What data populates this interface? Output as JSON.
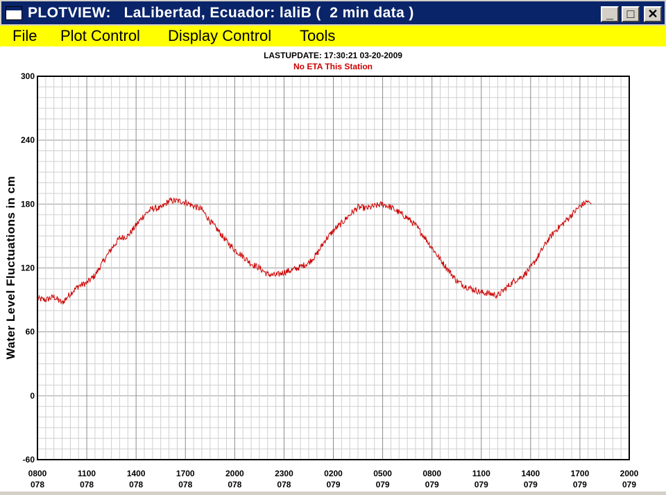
{
  "window": {
    "title": "PLOTVIEW:   LaLibertad, Ecuador: laliB (  2 min data )",
    "minimize_glyph": "_",
    "maximize_glyph": "□",
    "close_glyph": "✕"
  },
  "menu": {
    "file": "File",
    "plot_control": "Plot Control",
    "display_control": "Display Control",
    "tools": "Tools"
  },
  "chart_data": {
    "type": "line",
    "title": "LASTUPDATE: 17:30:21  03-20-2009",
    "subtitle": "No ETA This Station",
    "xlabel": "",
    "ylabel": "Water Level Fluctuations in cm",
    "ylim": [
      -60,
      300
    ],
    "yticks": [
      -60,
      0,
      60,
      120,
      180,
      240,
      300
    ],
    "xlim_hours": [
      0,
      36
    ],
    "xticks": [
      {
        "time": "0800",
        "day": "078"
      },
      {
        "time": "1100",
        "day": "078"
      },
      {
        "time": "1400",
        "day": "078"
      },
      {
        "time": "1700",
        "day": "078"
      },
      {
        "time": "2000",
        "day": "078"
      },
      {
        "time": "2300",
        "day": "078"
      },
      {
        "time": "0200",
        "day": "079"
      },
      {
        "time": "0500",
        "day": "079"
      },
      {
        "time": "0800",
        "day": "079"
      },
      {
        "time": "1100",
        "day": "079"
      },
      {
        "time": "1400",
        "day": "079"
      },
      {
        "time": "1700",
        "day": "079"
      },
      {
        "time": "2000",
        "day": "079"
      }
    ],
    "grid": true,
    "line_color": "#cc0000",
    "subtitle_color": "#cc0000",
    "series": [
      {
        "x": [
          0,
          0.5,
          1.0,
          1.5,
          2.0,
          2.5,
          3.0,
          3.5,
          4.0,
          4.5,
          5.0,
          5.5,
          6.0,
          6.5,
          7.0,
          7.5,
          8.0,
          8.5,
          9.0,
          9.5,
          10.0,
          10.5,
          11.0,
          11.5,
          12.0,
          12.5,
          13.0,
          13.5,
          14.0,
          14.5,
          15.0,
          15.5,
          16.0,
          16.5,
          17.0,
          17.5,
          18.0,
          18.5,
          19.0,
          19.5,
          20.0,
          20.5,
          21.0,
          21.5,
          22.0,
          22.5,
          23.0,
          23.5,
          24.0,
          24.5,
          25.0,
          25.5,
          26.0,
          26.5,
          27.0,
          27.5,
          28.0,
          28.5,
          29.0,
          29.5,
          30.0,
          30.5,
          31.0,
          31.5,
          32.0,
          32.5,
          33.0,
          33.5
        ],
        "y": [
          91,
          90,
          93,
          87,
          96,
          103,
          106,
          113,
          126,
          138,
          148,
          150,
          160,
          170,
          176,
          176,
          183,
          183,
          182,
          178,
          175,
          164,
          155,
          145,
          137,
          131,
          124,
          120,
          114,
          113,
          116,
          118,
          121,
          125,
          133,
          146,
          155,
          162,
          170,
          177,
          176,
          178,
          180,
          177,
          172,
          167,
          160,
          150,
          139,
          128,
          118,
          108,
          103,
          100,
          97,
          96,
          94,
          101,
          108,
          112,
          120,
          132,
          145,
          155,
          162,
          170,
          178,
          183
        ],
        "noise": 3,
        "end_x": 33.7,
        "end_y": 180
      }
    ]
  }
}
